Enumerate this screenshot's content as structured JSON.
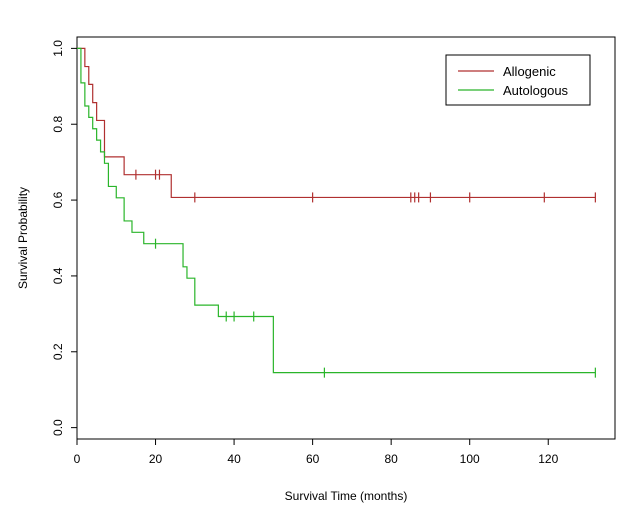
{
  "chart_data": {
    "type": "line",
    "title": "",
    "xlabel": "Survival Time (months)",
    "ylabel": "Survival Probability",
    "xlim": [
      0,
      137
    ],
    "ylim": [
      -0.03,
      1.03
    ],
    "x_ticks": [
      0,
      20,
      40,
      60,
      80,
      100,
      120
    ],
    "x_tick_labels": [
      "0",
      "20",
      "40",
      "60",
      "80",
      "100",
      "120"
    ],
    "y_ticks": [
      0.0,
      0.2,
      0.4,
      0.6,
      0.8,
      1.0
    ],
    "y_tick_labels": [
      "0.0",
      "0.2",
      "0.4",
      "0.6",
      "0.8",
      "1.0"
    ],
    "legend_position": "top-right",
    "series": [
      {
        "name": "Allogenic",
        "color": "#b03030",
        "step_x": [
          0,
          2,
          3,
          4,
          5,
          7,
          12,
          24,
          132
        ],
        "step_y": [
          1.0,
          0.952,
          0.905,
          0.857,
          0.81,
          0.714,
          0.667,
          0.607,
          0.607
        ],
        "censor_x": [
          15,
          20,
          21,
          30,
          60,
          85,
          86,
          87,
          90,
          100,
          119,
          132
        ],
        "censor_y": [
          0.667,
          0.667,
          0.667,
          0.607,
          0.607,
          0.607,
          0.607,
          0.607,
          0.607,
          0.607,
          0.607,
          0.607
        ]
      },
      {
        "name": "Autologous",
        "color": "#2ab52a",
        "step_x": [
          0,
          1,
          2,
          3,
          4,
          5,
          6,
          7,
          8,
          10,
          12,
          14,
          17,
          27,
          28,
          30,
          36,
          50,
          132
        ],
        "step_y": [
          1.0,
          0.909,
          0.848,
          0.818,
          0.788,
          0.758,
          0.727,
          0.697,
          0.636,
          0.606,
          0.545,
          0.515,
          0.485,
          0.424,
          0.394,
          0.323,
          0.293,
          0.145,
          0.145
        ],
        "censor_x": [
          20,
          38,
          40,
          45,
          63,
          132
        ],
        "censor_y": [
          0.485,
          0.293,
          0.293,
          0.293,
          0.145,
          0.145
        ]
      }
    ]
  }
}
